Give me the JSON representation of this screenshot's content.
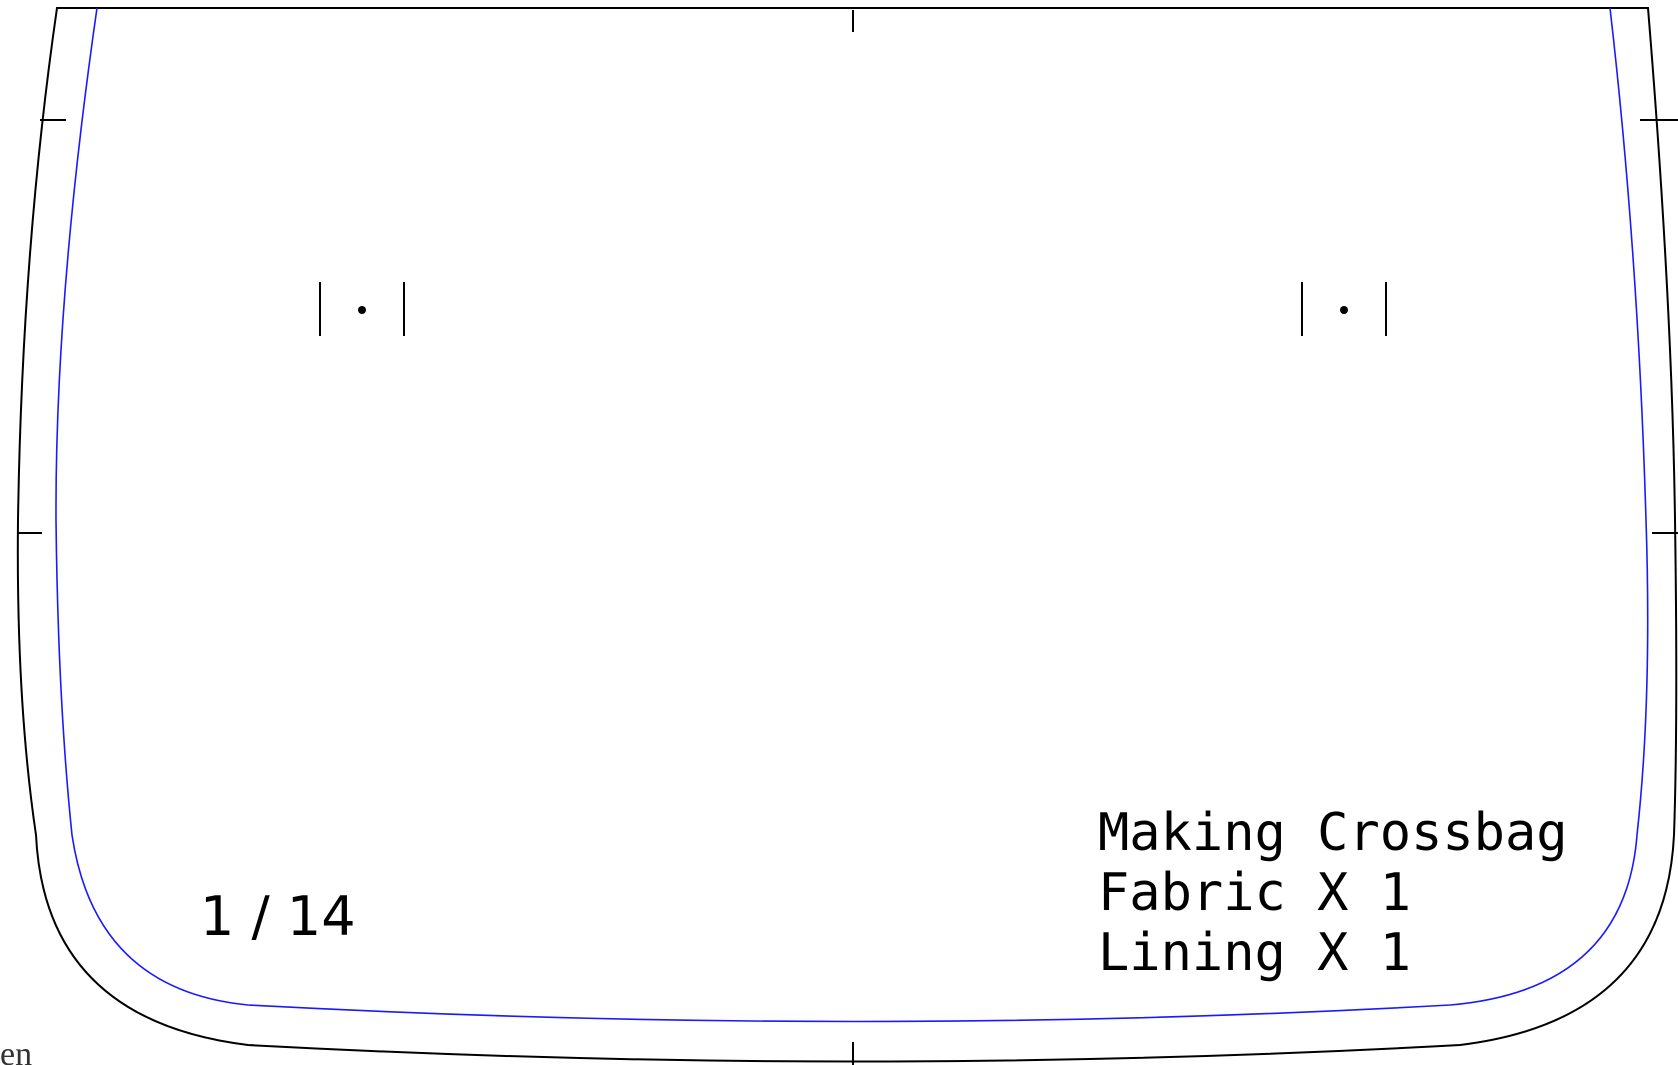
{
  "pattern": {
    "page_label": "1 / 14",
    "info": {
      "title": "Making Crossbag",
      "fabric": "Fabric X 1",
      "lining": "Lining X 1"
    },
    "markers": {
      "left": "|·|",
      "right": "|·|"
    },
    "cutoff_text": "en",
    "colors": {
      "cut_line": "#000000",
      "seam_line": "#1a1aff",
      "background": "#ffffff"
    }
  }
}
